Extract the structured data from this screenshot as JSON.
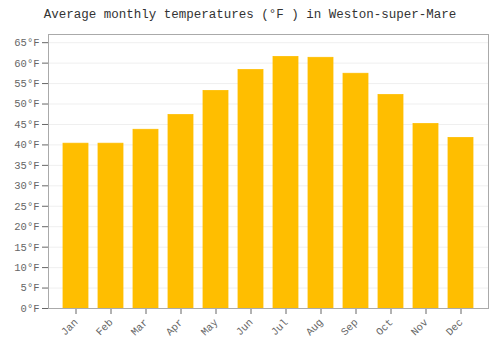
{
  "chart_data": {
    "type": "bar",
    "title": "Average monthly temperatures (°F ) in Weston-super-Mare",
    "categories": [
      "Jan",
      "Feb",
      "Mar",
      "Apr",
      "May",
      "Jun",
      "Jul",
      "Aug",
      "Sep",
      "Oct",
      "Nov",
      "Dec"
    ],
    "values": [
      40.3,
      40.3,
      43.7,
      47.3,
      53.2,
      58.3,
      61.5,
      61.3,
      57.4,
      52.2,
      45.1,
      41.7
    ],
    "color": "#FFBE00",
    "ylim": [
      0,
      67
    ],
    "yticks": [
      {
        "value": 0,
        "label": "0°F"
      },
      {
        "value": 5,
        "label": "5°F"
      },
      {
        "value": 10,
        "label": "10°F"
      },
      {
        "value": 15,
        "label": "15°F"
      },
      {
        "value": 20,
        "label": "20°F"
      },
      {
        "value": 25,
        "label": "25°F"
      },
      {
        "value": 30,
        "label": "30°F"
      },
      {
        "value": 35,
        "label": "35°F"
      },
      {
        "value": 40,
        "label": "40°F"
      },
      {
        "value": 45,
        "label": "45°F"
      },
      {
        "value": 50,
        "label": "50°F"
      },
      {
        "value": 55,
        "label": "55°F"
      },
      {
        "value": 60,
        "label": "60°F"
      },
      {
        "value": 65,
        "label": "65°F"
      }
    ],
    "grid": true
  }
}
